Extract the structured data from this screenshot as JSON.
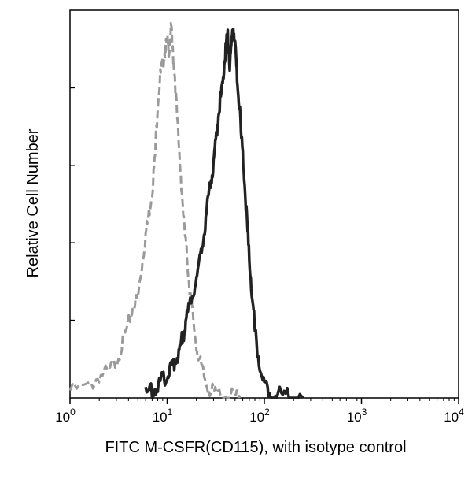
{
  "chart_data": {
    "type": "line",
    "title": "",
    "xlabel": "FITC M-CSFR(CD115), with isotype control",
    "ylabel": "Relative Cell Number",
    "x_scale": "log",
    "xlim": [
      1,
      10000
    ],
    "ylim": [
      0,
      100
    ],
    "grid": false,
    "x_ticks": [
      {
        "base": "10",
        "exp": "0",
        "value": 1
      },
      {
        "base": "10",
        "exp": "1",
        "value": 10
      },
      {
        "base": "10",
        "exp": "2",
        "value": 100
      },
      {
        "base": "10",
        "exp": "3",
        "value": 1000
      },
      {
        "base": "10",
        "exp": "4",
        "value": 10000
      }
    ],
    "series": [
      {
        "color": "#9a9a9a",
        "style": "dashed",
        "x": [
          1.0,
          1.6,
          2.0,
          2.5,
          3.0,
          3.5,
          4.0,
          4.5,
          5.0,
          5.5,
          6.0,
          6.5,
          7.0,
          7.5,
          8.0,
          8.5,
          9.0,
          9.5,
          10.0,
          10.5,
          11.0,
          11.5,
          12.0,
          13.0,
          14.0,
          15.0,
          16.0,
          17.0,
          18.0,
          20.0,
          22.0,
          25.0,
          28.0,
          32.0,
          40.0,
          50.0,
          56.0
        ],
        "y": [
          2,
          3,
          6,
          7,
          10,
          15,
          20,
          25,
          27,
          36,
          44,
          50,
          56,
          65,
          80,
          87,
          90,
          94,
          96,
          94,
          100,
          92,
          87,
          70,
          58,
          46,
          38,
          30,
          24,
          14,
          9,
          4,
          2,
          1,
          0.5,
          0.3,
          0
        ]
      },
      {
        "color": "#222222",
        "style": "solid",
        "x": [
          6,
          7,
          8,
          9,
          10,
          11,
          12,
          13,
          14,
          15,
          16,
          18,
          20,
          22,
          24,
          26,
          28,
          30,
          32,
          34,
          36,
          38,
          40,
          42,
          44,
          46,
          48,
          50,
          52,
          55,
          58,
          62,
          66,
          70,
          75,
          80,
          90,
          100,
          110,
          130,
          160,
          200,
          250
        ],
        "y": [
          1,
          2,
          3,
          5,
          6,
          8,
          10,
          12,
          15,
          18,
          22,
          27,
          32,
          38,
          45,
          52,
          58,
          63,
          70,
          78,
          82,
          88,
          94,
          98,
          90,
          96,
          100,
          95,
          88,
          80,
          70,
          60,
          48,
          38,
          28,
          18,
          8,
          4,
          2,
          1,
          0.5,
          0.3,
          0
        ]
      }
    ]
  }
}
